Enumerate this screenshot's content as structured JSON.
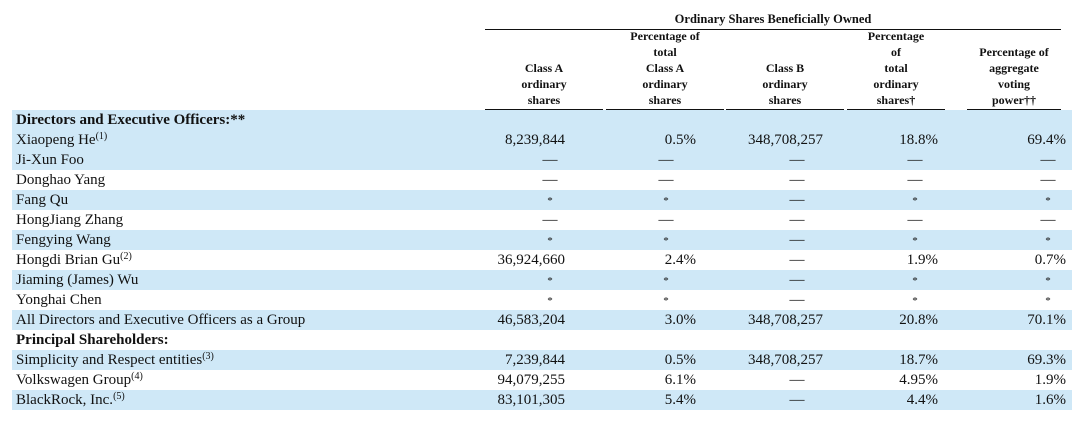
{
  "table": {
    "group_header": "Ordinary Shares Beneficially Owned",
    "columns": [
      "Class A\nordinary\nshares",
      "Percentage of\ntotal\nClass A\nordinary\nshares",
      "Class B\nordinary\nshares",
      "Percentage\nof\ntotal\nordinary\nshares†",
      "Percentage of\naggregate\nvoting\npower††"
    ],
    "rows": [
      {
        "label": "Directors and Executive Officers:**",
        "note": "",
        "section": true,
        "shade": true,
        "cells": [
          "",
          "",
          "",
          "",
          ""
        ]
      },
      {
        "label": "Xiaopeng He",
        "note": "(1)",
        "shade": true,
        "cells": [
          "8,239,844",
          "0.5%",
          "348,708,257",
          "18.8%",
          "69.4%"
        ]
      },
      {
        "label": "Ji-Xun Foo",
        "note": "",
        "shade": true,
        "cells": [
          "—",
          "—",
          "—",
          "—",
          "—"
        ]
      },
      {
        "label": "Donghao Yang",
        "note": "",
        "shade": false,
        "cells": [
          "—",
          "—",
          "—",
          "—",
          "—"
        ]
      },
      {
        "label": "Fang Qu",
        "note": "",
        "shade": true,
        "cells": [
          "*",
          "*",
          "—",
          "*",
          "*"
        ]
      },
      {
        "label": "HongJiang Zhang",
        "note": "",
        "shade": false,
        "cells": [
          "—",
          "—",
          "—",
          "—",
          "—"
        ]
      },
      {
        "label": "Fengying Wang",
        "note": "",
        "shade": true,
        "cells": [
          "*",
          "*",
          "—",
          "*",
          "*"
        ]
      },
      {
        "label": "Hongdi Brian Gu",
        "note": "(2)",
        "shade": false,
        "cells": [
          "36,924,660",
          "2.4%",
          "—",
          "1.9%",
          "0.7%"
        ]
      },
      {
        "label": "Jiaming (James) Wu",
        "note": "",
        "shade": true,
        "cells": [
          "*",
          "*",
          "—",
          "*",
          "*"
        ]
      },
      {
        "label": "Yonghai Chen",
        "note": "",
        "shade": false,
        "cells": [
          "*",
          "*",
          "—",
          "*",
          "*"
        ]
      },
      {
        "label": "All Directors and Executive Officers as a Group",
        "note": "",
        "shade": true,
        "cells": [
          "46,583,204",
          "3.0%",
          "348,708,257",
          "20.8%",
          "70.1%"
        ]
      },
      {
        "label": "Principal Shareholders:",
        "note": "",
        "section": true,
        "shade": false,
        "cells": [
          "",
          "",
          "",
          "",
          ""
        ]
      },
      {
        "label": "Simplicity and Respect entities",
        "note": "(3)",
        "shade": true,
        "cells": [
          "7,239,844",
          "0.5%",
          "348,708,257",
          "18.7%",
          "69.3%"
        ]
      },
      {
        "label": "Volkswagen Group",
        "note": "(4)",
        "shade": false,
        "cells": [
          "94,079,255",
          "6.1%",
          "—",
          "4.95%",
          "1.9%"
        ]
      },
      {
        "label": "BlackRock, Inc.",
        "note": "(5)",
        "shade": true,
        "cells": [
          "83,101,305",
          "5.4%",
          "—",
          "4.4%",
          "1.6%"
        ]
      }
    ]
  }
}
